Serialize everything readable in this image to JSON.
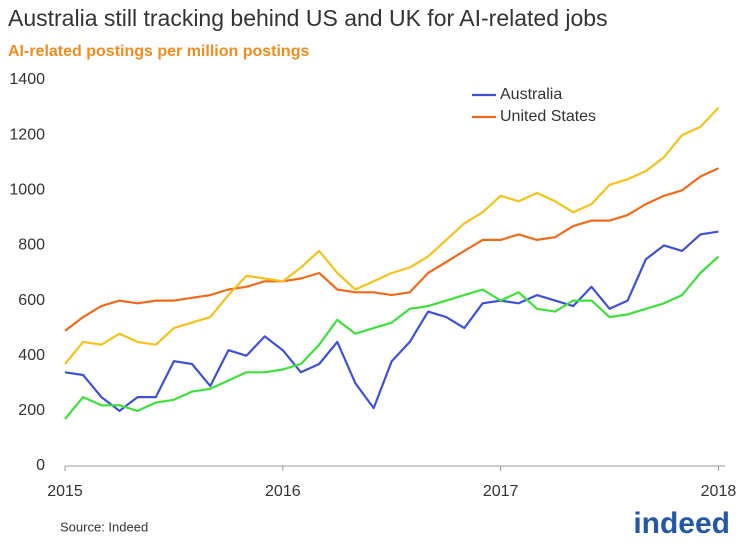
{
  "chart_data": {
    "type": "line",
    "title": "Australia still tracking behind US and UK for AI-related jobs",
    "subtitle": "AI-related postings per million postings",
    "source": "Source: Indeed",
    "logo": "indeed",
    "x": [
      2015,
      2015.083,
      2015.167,
      2015.25,
      2015.333,
      2015.417,
      2015.5,
      2015.583,
      2015.667,
      2015.75,
      2015.833,
      2015.917,
      2016,
      2016.083,
      2016.167,
      2016.25,
      2016.333,
      2016.417,
      2016.5,
      2016.583,
      2016.667,
      2016.75,
      2016.833,
      2016.917,
      2017,
      2017.083,
      2017.167,
      2017.25,
      2017.333,
      2017.417,
      2017.5,
      2017.583,
      2017.667,
      2017.75,
      2017.833,
      2017.917,
      2018
    ],
    "series": [
      {
        "name": "Australia",
        "color": "#3f51d9",
        "values": [
          340,
          330,
          250,
          200,
          250,
          250,
          380,
          370,
          290,
          420,
          400,
          470,
          420,
          340,
          370,
          450,
          300,
          210,
          380,
          450,
          560,
          540,
          500,
          590,
          600,
          590,
          620,
          600,
          580,
          650,
          570,
          600,
          750,
          800,
          780,
          840,
          850
        ]
      },
      {
        "name": "United States",
        "color": "#f26a1b",
        "values": [
          490,
          540,
          580,
          600,
          590,
          600,
          600,
          610,
          620,
          640,
          650,
          670,
          670,
          680,
          700,
          640,
          630,
          630,
          620,
          630,
          700,
          740,
          780,
          820,
          820,
          840,
          820,
          830,
          870,
          890,
          890,
          910,
          950,
          980,
          1000,
          1050,
          1080
        ]
      },
      {
        "color": "#f7c21b",
        "values": [
          370,
          450,
          440,
          480,
          450,
          440,
          500,
          520,
          540,
          620,
          690,
          680,
          670,
          720,
          780,
          700,
          640,
          670,
          700,
          720,
          760,
          820,
          880,
          920,
          980,
          960,
          990,
          960,
          920,
          950,
          1020,
          1040,
          1070,
          1120,
          1200,
          1230,
          1300
        ]
      },
      {
        "color": "#3ee03a",
        "values": [
          170,
          250,
          220,
          220,
          200,
          230,
          240,
          270,
          280,
          310,
          340,
          340,
          350,
          370,
          440,
          530,
          480,
          500,
          520,
          570,
          580,
          600,
          620,
          640,
          600,
          630,
          570,
          560,
          600,
          600,
          540,
          550,
          570,
          590,
          620,
          700,
          760
        ]
      }
    ],
    "xlim": [
      2015,
      2018.03
    ],
    "xticks": [
      2015,
      2016,
      2017,
      2018
    ],
    "ylim": [
      0,
      1400
    ],
    "yticks": [
      0,
      200,
      400,
      600,
      800,
      1000,
      1200,
      1400
    ],
    "legend": "top-right"
  }
}
